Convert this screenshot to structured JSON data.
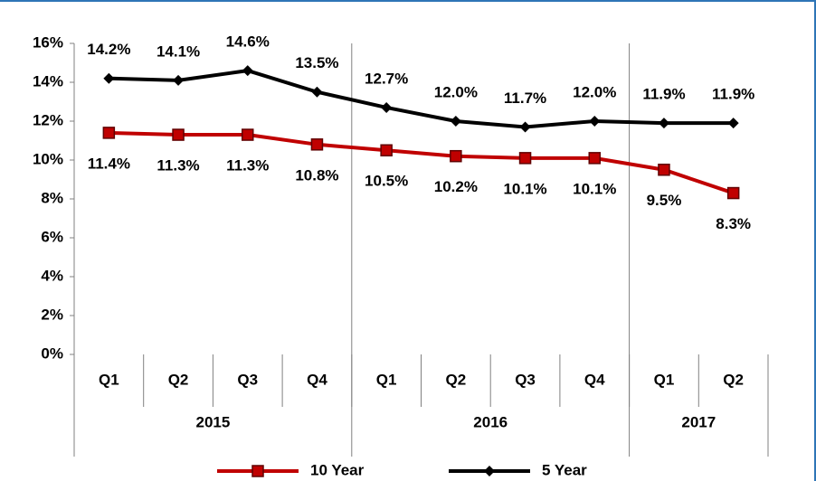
{
  "chart_data": {
    "type": "line",
    "categories": [
      "Q1",
      "Q2",
      "Q3",
      "Q4",
      "Q1",
      "Q2",
      "Q3",
      "Q4",
      "Q1",
      "Q2"
    ],
    "category_groups": [
      {
        "label": "2015",
        "span": 4
      },
      {
        "label": "2016",
        "span": 4
      },
      {
        "label": "2017",
        "span": 2
      }
    ],
    "series": [
      {
        "name": "10 Year",
        "color": "#c00000",
        "marker": "square",
        "values": [
          11.4,
          11.3,
          11.3,
          10.8,
          10.5,
          10.2,
          10.1,
          10.1,
          9.5,
          8.3
        ],
        "value_labels": [
          "11.4%",
          "11.3%",
          "11.3%",
          "10.8%",
          "10.5%",
          "10.2%",
          "10.1%",
          "10.1%",
          "9.5%",
          "8.3%"
        ]
      },
      {
        "name": "5 Year",
        "color": "#000000",
        "marker": "diamond",
        "values": [
          14.2,
          14.1,
          14.6,
          13.5,
          12.7,
          12.0,
          11.7,
          12.0,
          11.9,
          11.9
        ],
        "value_labels": [
          "14.2%",
          "14.1%",
          "14.6%",
          "13.5%",
          "12.7%",
          "12.0%",
          "11.7%",
          "12.0%",
          "11.9%",
          "11.9%"
        ]
      }
    ],
    "ylim": [
      0,
      16
    ],
    "yticks": [
      {
        "value": 0,
        "label": "0%"
      },
      {
        "value": 2,
        "label": "2%"
      },
      {
        "value": 4,
        "label": "4%"
      },
      {
        "value": 6,
        "label": "6%"
      },
      {
        "value": 8,
        "label": "8%"
      },
      {
        "value": 10,
        "label": "10%"
      },
      {
        "value": 12,
        "label": "12%"
      },
      {
        "value": 14,
        "label": "14%"
      },
      {
        "value": 16,
        "label": "16%"
      }
    ],
    "legend": "bottom"
  }
}
